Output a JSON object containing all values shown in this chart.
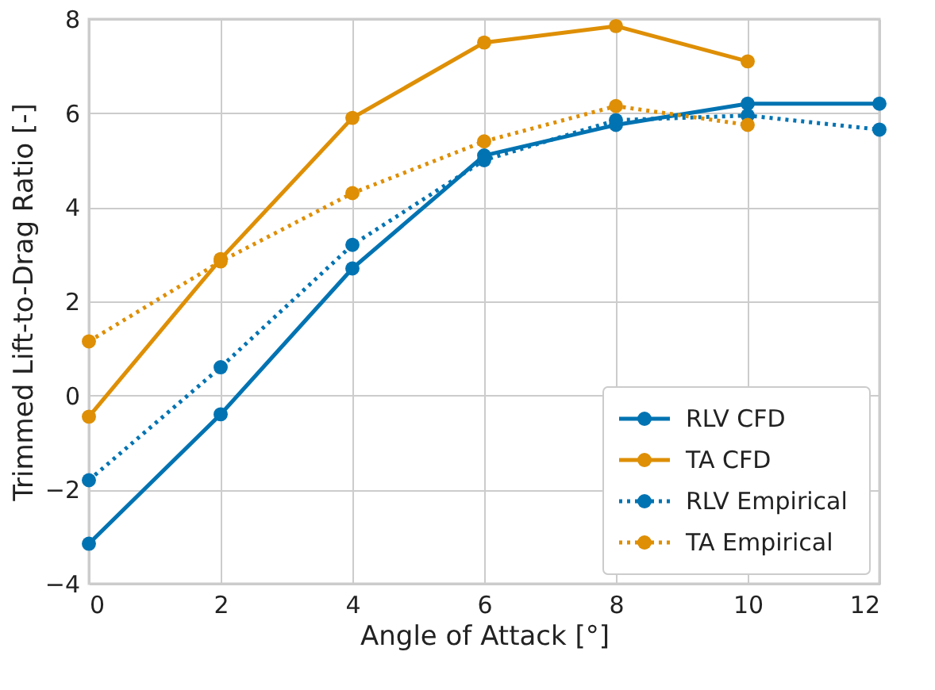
{
  "chart_data": {
    "type": "line",
    "xlabel": "Angle of Attack [°]",
    "ylabel": "Trimmed Lift-to-Drag Ratio [-]",
    "xlim": [
      0,
      12
    ],
    "xticks": [
      0,
      2,
      4,
      6,
      8,
      10,
      12
    ],
    "ylim": [
      -4,
      8
    ],
    "yticks": [
      -4,
      -2,
      0,
      2,
      4,
      6,
      8
    ],
    "grid": true,
    "legend": "bottom right",
    "marker": "circle",
    "series": [
      {
        "name": "RLV CFD",
        "color": "#0173b2",
        "line_style": "solid",
        "x": [
          0,
          2,
          4,
          6,
          8,
          10,
          12
        ],
        "values": [
          -3.15,
          -0.4,
          2.7,
          5.1,
          5.75,
          6.2,
          6.2
        ]
      },
      {
        "name": "TA CFD",
        "color": "#de8f05",
        "line_style": "solid",
        "x": [
          0,
          2,
          4,
          6,
          8,
          10
        ],
        "values": [
          -0.45,
          2.9,
          5.9,
          7.5,
          7.85,
          7.1
        ]
      },
      {
        "name": "RLV Empirical",
        "color": "#0173b2",
        "line_style": "dotted",
        "x": [
          0,
          2,
          4,
          6,
          8,
          10,
          12
        ],
        "values": [
          -1.8,
          0.6,
          3.2,
          5.0,
          5.85,
          5.95,
          5.65
        ]
      },
      {
        "name": "TA Empirical",
        "color": "#de8f05",
        "line_style": "dotted",
        "x": [
          0,
          2,
          4,
          6,
          8,
          10
        ],
        "values": [
          1.15,
          2.85,
          4.3,
          5.4,
          6.15,
          5.75
        ]
      }
    ]
  }
}
